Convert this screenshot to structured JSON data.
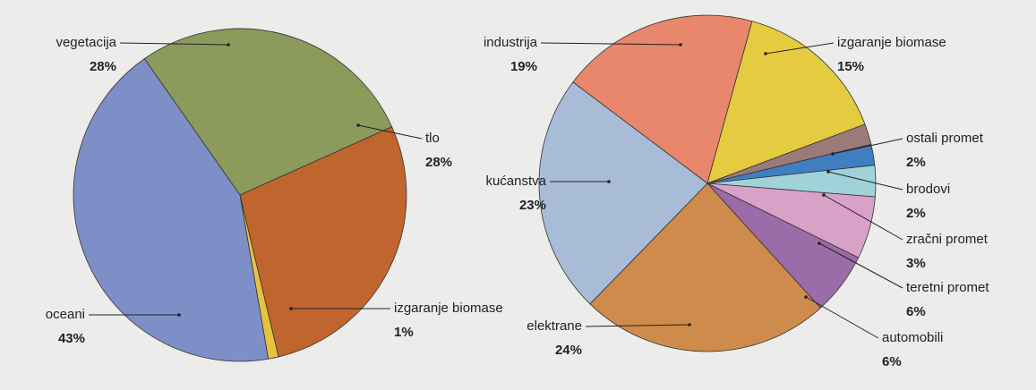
{
  "chart_data": [
    {
      "type": "pie",
      "categories": [
        "vegetacija",
        "tlo",
        "izgaranje biomase",
        "oceani"
      ],
      "values": [
        28,
        28,
        1,
        43
      ],
      "value_labels": [
        "28%",
        "28%",
        "1%",
        "43%"
      ],
      "colors": [
        "#8c9a5c",
        "#c1652f",
        "#e6c240",
        "#7d8fc6"
      ]
    },
    {
      "type": "pie",
      "categories": [
        "industrija",
        "izgaranje biomase",
        "ostali promet",
        "brodovi",
        "zračni promet",
        "teretni promet",
        "automobili",
        "elektrane",
        "kućanstva"
      ],
      "values": [
        19,
        15,
        2,
        2,
        3,
        6,
        6,
        24,
        23
      ],
      "value_labels": [
        "19%",
        "15%",
        "2%",
        "2%",
        "3%",
        "6%",
        "6%",
        "24%",
        "23%"
      ],
      "colors": [
        "#e8876b",
        "#e5cb40",
        "#9a7b7a",
        "#3f7fc0",
        "#a0d2da",
        "#d8a2c8",
        "#9b6ca8",
        "#cf8b4c",
        "#a9bcd7"
      ]
    }
  ]
}
